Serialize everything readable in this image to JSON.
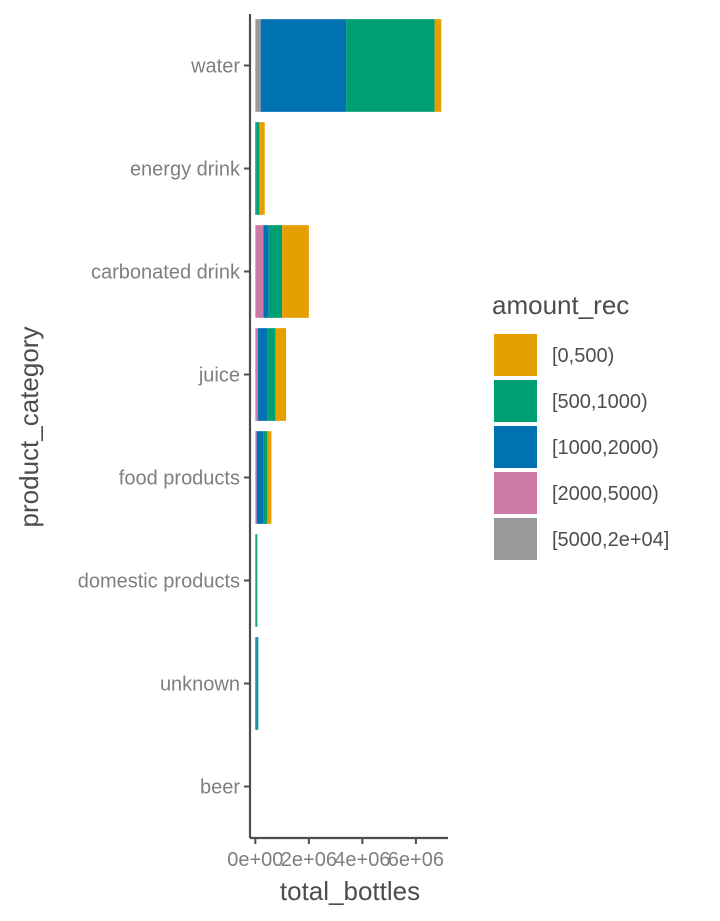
{
  "chart_data": {
    "type": "bar",
    "orientation": "horizontal",
    "stacked": true,
    "xlabel": "total_bottles",
    "ylabel": "product_category",
    "categories": [
      "water",
      "energy drink",
      "carbonated drink",
      "juice",
      "food products",
      "domestic products",
      "unknown",
      "beer"
    ],
    "x_ticks": [
      {
        "value": 0,
        "label": "0e+00"
      },
      {
        "value": 2000000,
        "label": "2e+06"
      },
      {
        "value": 4000000,
        "label": "4e+06"
      },
      {
        "value": 6000000,
        "label": "6e+06"
      }
    ],
    "xlim": [
      -200000,
      7200000
    ],
    "grid": false,
    "legend": {
      "title": "amount_rec",
      "position": "right",
      "items": [
        {
          "name": "[0,500)",
          "color": "#E69F00"
        },
        {
          "name": "[500,1000)",
          "color": "#009E73"
        },
        {
          "name": "[1000,2000)",
          "color": "#0072B2"
        },
        {
          "name": "[2000,5000)",
          "color": "#CC79A7"
        },
        {
          "name": "[5000,2e+04]",
          "color": "#999999"
        }
      ]
    },
    "series": [
      {
        "name": "[5000,2e+04]",
        "color": "#999999",
        "values": [
          200000,
          0,
          0,
          0,
          0,
          0,
          0,
          0
        ]
      },
      {
        "name": "[2000,5000)",
        "color": "#CC79A7",
        "values": [
          0,
          0,
          300000,
          100000,
          50000,
          0,
          0,
          0
        ]
      },
      {
        "name": "[1000,2000)",
        "color": "#0072B2",
        "values": [
          3200000,
          30000,
          200000,
          350000,
          250000,
          20000,
          50000,
          0
        ]
      },
      {
        "name": "[500,1000)",
        "color": "#009E73",
        "values": [
          3300000,
          120000,
          500000,
          300000,
          150000,
          40000,
          60000,
          0
        ]
      },
      {
        "name": "[0,500)",
        "color": "#E69F00",
        "values": [
          250000,
          200000,
          1000000,
          400000,
          150000,
          20000,
          0,
          0
        ]
      }
    ]
  }
}
